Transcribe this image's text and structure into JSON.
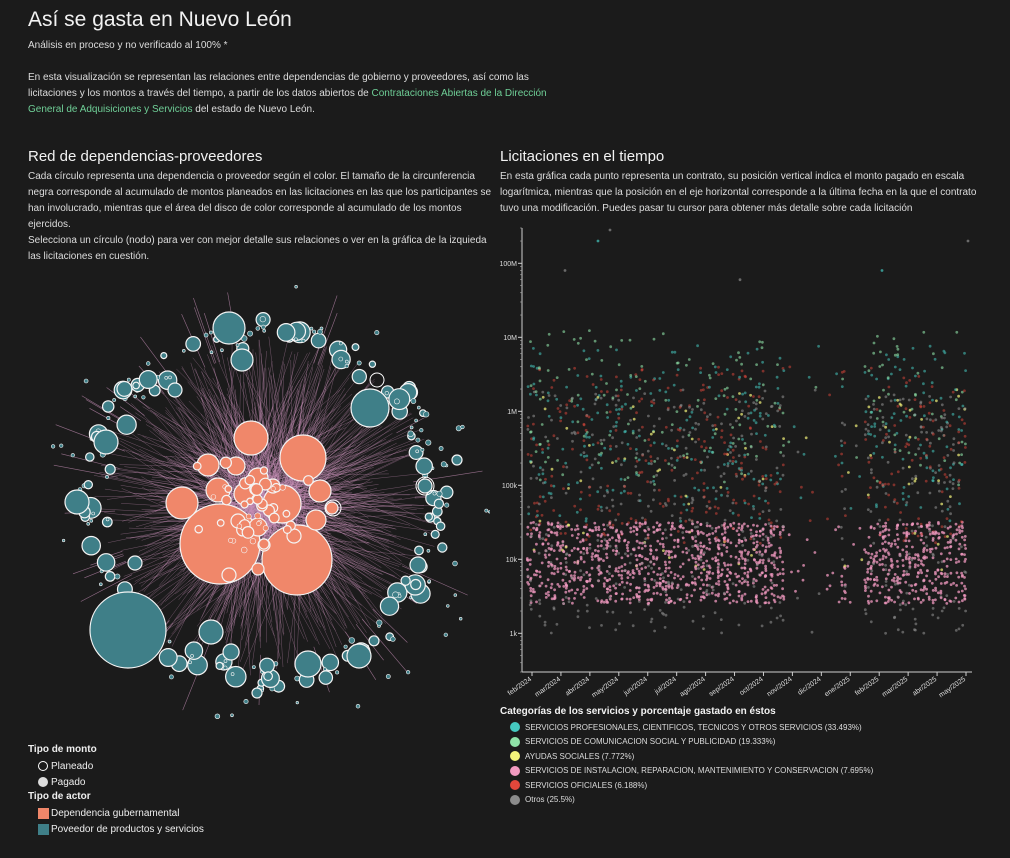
{
  "header": {
    "title": "Así se gasta en Nuevo León",
    "subtitle": "Análisis en proceso y no verificado al 100% *",
    "intro_before": "En esta visualización se representan las relaciones entre dependencias de gobierno y proveedores, así como las licitaciones y los montos a través del tiempo, a partir de los datos abiertos de ",
    "intro_link": "Contrataciones Abiertas de la Dirección General de Adquisiciones y Servicios",
    "intro_after": " del estado de Nuevo León."
  },
  "network": {
    "title": "Red de dependencias-proveedores",
    "desc1": "Cada círculo representa una dependencia o proveedor según el color. El tamaño de la circunferencia negra corresponde al acumulado de montos planeados en las licitaciones en las que los participantes se han involucrado, mientras que el área del disco de color corresponde al acumulado de los montos ejercidos.",
    "desc2": "Selecciona un círculo (nodo) para ver con mejor detalle sus relaciones o ver en la gráfica de la izquieda las licitaciones en cuestión.",
    "legend": {
      "monto_title": "Tipo de monto",
      "planeado": "Planeado",
      "pagado": "Pagado",
      "actor_title": "Tipo de actor",
      "dependencia": "Dependencia gubernamental",
      "proveedor": "Poveedor de productos y servicios"
    },
    "colors": {
      "dependencia": "#f0876a",
      "proveedor": "#3f7f88",
      "edge": "#c890b8"
    }
  },
  "timeline": {
    "title": "Licitaciones en el tiempo",
    "desc": "En esta gráfica cada punto representa un contrato, su posición vertical indica el monto pagado en escala logarítmica, mientras que la posición en el eje horizontal corresponde a la última fecha en la que el contrato tuvo una modificación. Puedes pasar tu cursor para obtener más detalle sobre cada licitación",
    "legend_title": "Categorías de los servicios y porcentaje gastado en éstos"
  },
  "chart_data": {
    "type": "scatter",
    "y_scale": "log",
    "y_ticks": [
      {
        "value": 1000,
        "label": "1k"
      },
      {
        "value": 10000,
        "label": "10k"
      },
      {
        "value": 100000,
        "label": "100k"
      },
      {
        "value": 1000000,
        "label": "1M"
      },
      {
        "value": 10000000,
        "label": "10M"
      },
      {
        "value": 100000000,
        "label": "100M"
      }
    ],
    "x_ticks": [
      "feb/2024",
      "mar/2024",
      "abr/2024",
      "may/2024",
      "jun/2024",
      "jul/2024",
      "ago/2024",
      "sep/2024",
      "oct/2024",
      "nov/2024",
      "dic/2024",
      "ene/2025",
      "feb/2025",
      "mar/2025",
      "abr/2025",
      "may/2025"
    ],
    "series": [
      {
        "name": "SERVICIOS PROFESIONALES, CIENTIFICOS, TECNICOS Y OTROS SERVICIOS (33.493%)",
        "color": "#45c9c0"
      },
      {
        "name": "SERVICIOS DE COMUNICACION SOCIAL Y PUBLICIDAD (19.333%)",
        "color": "#8fe3a8"
      },
      {
        "name": "AYUDAS SOCIALES (7.772%)",
        "color": "#f4f47a"
      },
      {
        "name": "SERVICIOS DE INSTALACION, REPARACION, MANTENIMIENTO Y CONSERVACION (7.695%)",
        "color": "#f29ac0"
      },
      {
        "name": "SERVICIOS OFICIALES (6.188%)",
        "color": "#e2473b"
      },
      {
        "name": "Otros (25.5%)",
        "color": "#8c8c8c"
      }
    ]
  }
}
